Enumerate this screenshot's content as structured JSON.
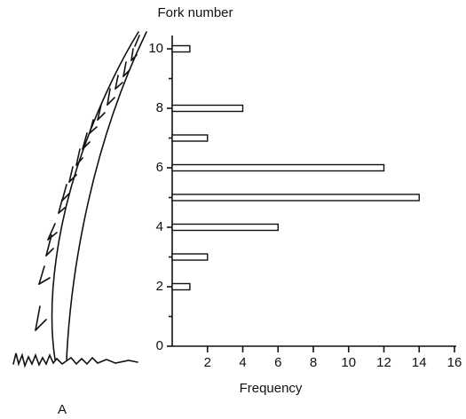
{
  "chart_data": {
    "type": "bar",
    "orientation": "horizontal",
    "y_axis_title": "Fork number",
    "x_axis_title": "Frequency",
    "panel_label": "A",
    "x": [
      2,
      3,
      4,
      5,
      6,
      7,
      8,
      10
    ],
    "values": [
      1,
      2,
      6,
      14,
      12,
      2,
      4,
      1
    ],
    "color": "#ffffff",
    "xlim": [
      0,
      16
    ],
    "xticks": [
      2,
      4,
      6,
      8,
      10,
      12,
      14,
      16
    ],
    "ylim": [
      0,
      10
    ],
    "yticks": [
      0,
      2,
      4,
      6,
      8,
      10
    ],
    "yminorticks": [
      1,
      3,
      5,
      7,
      9
    ],
    "grid": false
  }
}
